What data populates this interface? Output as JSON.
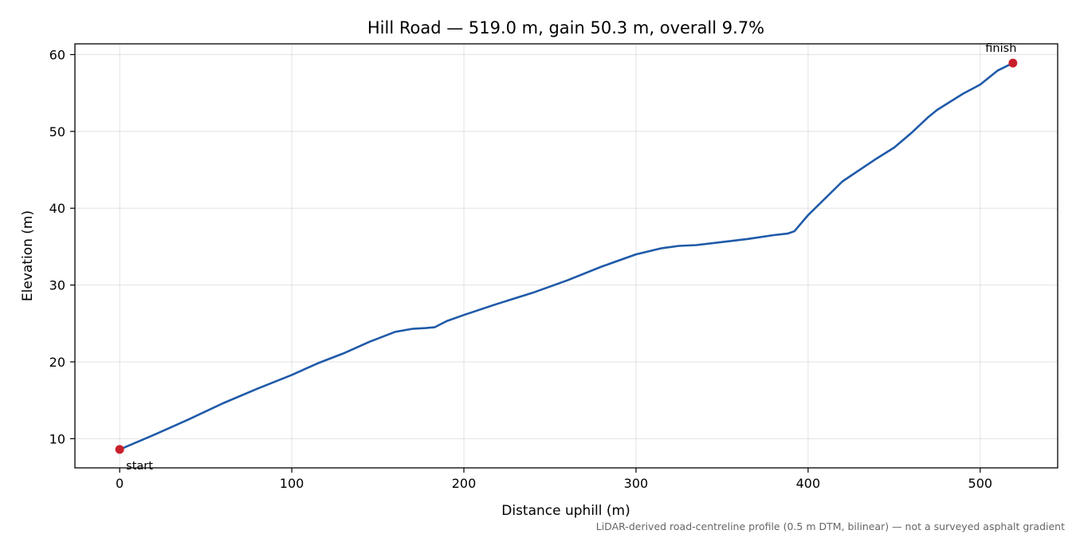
{
  "chart_data": {
    "type": "line",
    "title": "Hill Road — 519.0 m, gain 50.3 m, overall 9.7%",
    "xlabel": "Distance uphill (m)",
    "ylabel": "Elevation (m)",
    "xlim": [
      -26,
      545
    ],
    "ylim": [
      6.2,
      61.4
    ],
    "xticks": [
      0,
      100,
      200,
      300,
      400,
      500
    ],
    "yticks": [
      10,
      20,
      30,
      40,
      50,
      60
    ],
    "grid": true,
    "series": [
      {
        "color": "#1f5aa8",
        "x": [
          0,
          20,
          40,
          60,
          80,
          100,
          115,
          130,
          145,
          160,
          170,
          178,
          183,
          190,
          200,
          220,
          240,
          260,
          280,
          300,
          315,
          325,
          335,
          350,
          365,
          380,
          388,
          392,
          400,
          420,
          440,
          450,
          460,
          470,
          475,
          480,
          490,
          500,
          510,
          519
        ],
        "y": [
          8.6,
          10.5,
          12.5,
          14.6,
          16.5,
          18.3,
          19.8,
          21.1,
          22.6,
          23.9,
          24.3,
          24.4,
          24.5,
          25.3,
          26.1,
          27.6,
          29.0,
          30.6,
          32.4,
          34.0,
          34.8,
          35.1,
          35.2,
          35.6,
          36.0,
          36.5,
          36.7,
          37.0,
          39.1,
          43.5,
          46.5,
          47.9,
          49.8,
          51.9,
          52.8,
          53.5,
          54.9,
          56.1,
          57.9,
          58.9
        ]
      }
    ],
    "markers": [
      {
        "x": 0,
        "y": 8.6,
        "color": "#c8202b",
        "label": "start"
      },
      {
        "x": 519,
        "y": 58.9,
        "color": "#c8202b",
        "label": "finish"
      }
    ],
    "footnote": "LiDAR-derived road-centreline profile (0.5 m DTM, bilinear) — not a surveyed asphalt gradient"
  }
}
